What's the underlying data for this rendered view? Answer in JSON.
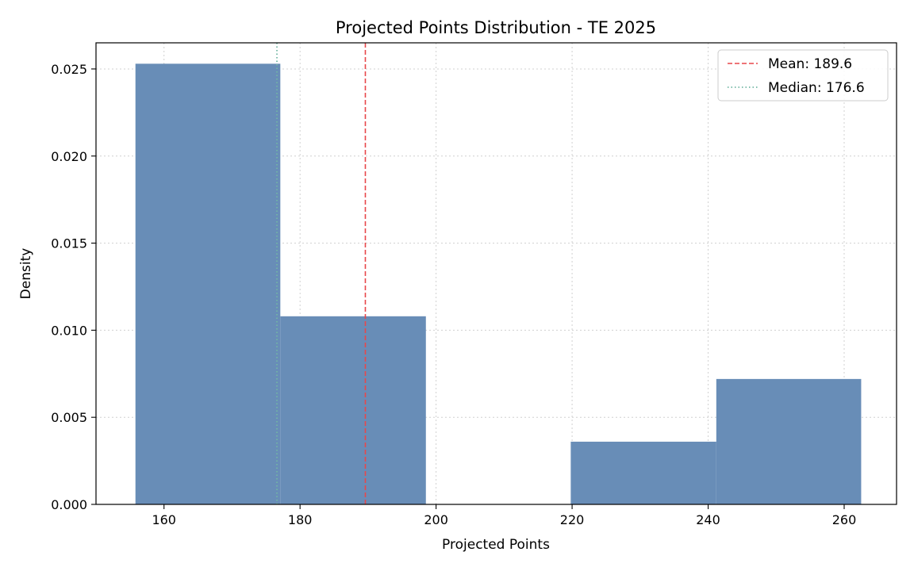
{
  "chart_data": {
    "type": "bar",
    "title": "Projected Points Distribution - TE 2025",
    "xlabel": "Projected Points",
    "ylabel": "Density",
    "xlim": [
      150,
      267.7
    ],
    "ylim": [
      0,
      0.0265
    ],
    "xticks": [
      160,
      180,
      200,
      220,
      240,
      260
    ],
    "yticks": [
      0,
      0.005,
      0.01,
      0.015,
      0.02,
      0.025
    ],
    "ytick_labels": [
      "0.000",
      "0.005",
      "0.010",
      "0.015",
      "0.020",
      "0.025"
    ],
    "grid": true,
    "legend_position": "top-right",
    "bins": [
      {
        "x0": 155.8,
        "x1": 177.1,
        "density": 0.0253
      },
      {
        "x0": 177.1,
        "x1": 198.5,
        "density": 0.0108
      },
      {
        "x0": 198.5,
        "x1": 219.8,
        "density": 0.0
      },
      {
        "x0": 219.8,
        "x1": 241.2,
        "density": 0.0036
      },
      {
        "x0": 241.2,
        "x1": 262.5,
        "density": 0.0072
      }
    ],
    "reference_lines": [
      {
        "label": "Mean: 189.6",
        "value": 189.6,
        "color": "#e8474a",
        "style": "dashed"
      },
      {
        "label": "Median: 176.6",
        "value": 176.6,
        "color": "#72b6a4",
        "style": "dotted"
      }
    ],
    "bar_color": "#688db7"
  }
}
